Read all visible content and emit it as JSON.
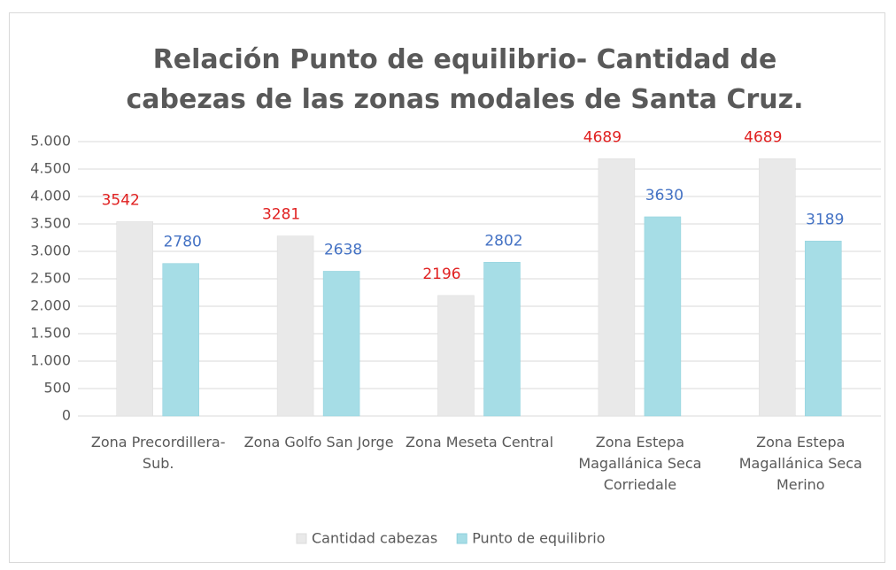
{
  "chart_data": {
    "type": "bar",
    "title": "Relación Punto de equilibrio- Cantidad de cabezas de las zonas modales de Santa Cruz.",
    "categories": [
      "Zona Precordillera-Sub.",
      "Zona Golfo San Jorge",
      "Zona Meseta Central",
      "Zona Estepa Magallánica Seca Corriedale",
      "Zona Estepa Magallánica Seca Merino"
    ],
    "series": [
      {
        "name": "Cantidad cabezas",
        "color": "#e9e9e9",
        "label_color": "#e02020",
        "values": [
          3542,
          3281,
          2196,
          4689,
          4689
        ]
      },
      {
        "name": "Punto de equilibrio",
        "color": "#a6dde6",
        "label_color": "#4472c4",
        "values": [
          2780,
          2638,
          2802,
          3630,
          3189
        ]
      }
    ],
    "ylim": [
      0,
      5000
    ],
    "yticks": [
      0,
      500,
      {
        "value": 1000,
        "label": "1.000"
      },
      {
        "value": 1500,
        "label": "1.500"
      },
      {
        "value": 2000,
        "label": "2.000"
      },
      {
        "value": 2500,
        "label": "2.500"
      },
      {
        "value": 3000,
        "label": "3.000"
      },
      {
        "value": 3500,
        "label": "3.500"
      },
      {
        "value": 4000,
        "label": "4.000"
      },
      {
        "value": 4500,
        "label": "4.500"
      },
      {
        "value": 5000,
        "label": "5.000"
      }
    ],
    "grid": true,
    "legend": "bottom"
  }
}
